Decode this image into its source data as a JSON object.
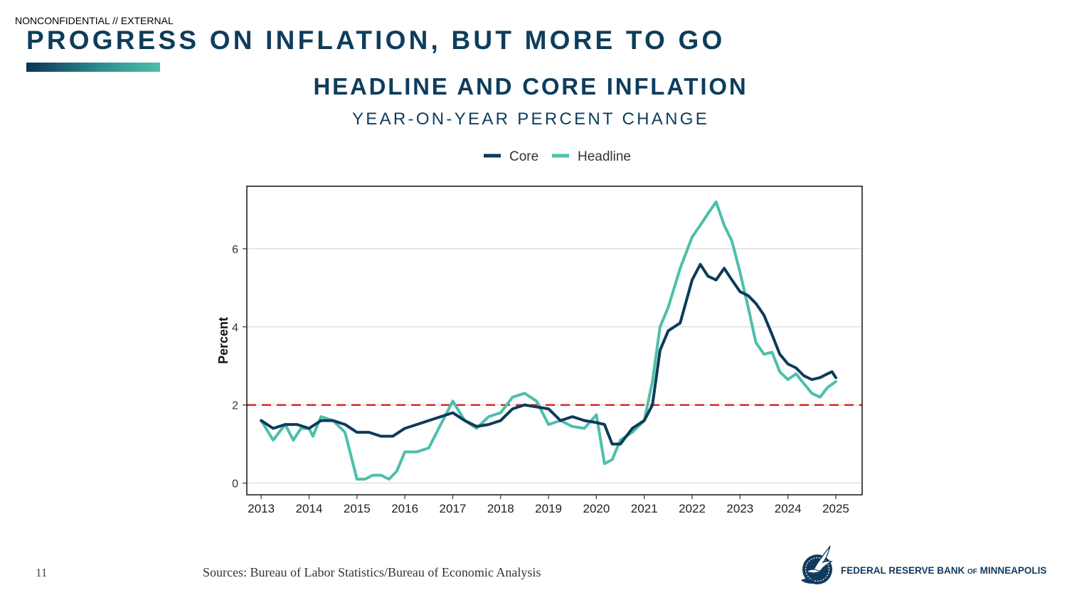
{
  "classification": "NONCONFIDENTIAL // EXTERNAL",
  "slide_title": "PROGRESS ON INFLATION, BUT MORE TO GO",
  "page_number": "11",
  "sources": "Sources: Bureau of Labor Statistics/Bureau of Economic Analysis",
  "logo": {
    "prefix": "FEDERAL RESERVE BANK ",
    "of": "OF",
    "suffix": " MINNEAPOLIS"
  },
  "colors": {
    "core": "#0d3b5a",
    "headline": "#4dbfaa",
    "target": "#e0302b",
    "title": "#0e3d5c"
  },
  "chart_data": {
    "type": "line",
    "title": "HEADLINE AND CORE INFLATION",
    "subtitle": "YEAR-ON-YEAR PERCENT CHANGE",
    "xlabel": "",
    "ylabel": "Percent",
    "xlim": [
      2012.7,
      2025.55
    ],
    "ylim": [
      -0.3,
      7.6
    ],
    "xticks": [
      2013,
      2014,
      2015,
      2016,
      2017,
      2018,
      2019,
      2020,
      2021,
      2022,
      2023,
      2024,
      2025
    ],
    "yticks": [
      0,
      2,
      4,
      6
    ],
    "grid": "horizontal",
    "legend_position": "top",
    "reference_line": {
      "y": 2,
      "style": "dashed"
    },
    "series": [
      {
        "name": "Core",
        "x": [
          2013.0,
          2013.25,
          2013.5,
          2013.75,
          2014.0,
          2014.25,
          2014.5,
          2014.75,
          2015.0,
          2015.25,
          2015.5,
          2015.75,
          2016.0,
          2016.25,
          2016.5,
          2016.75,
          2017.0,
          2017.25,
          2017.5,
          2017.75,
          2018.0,
          2018.25,
          2018.5,
          2018.75,
          2019.0,
          2019.25,
          2019.5,
          2019.75,
          2020.0,
          2020.17,
          2020.33,
          2020.5,
          2020.75,
          2021.0,
          2021.17,
          2021.33,
          2021.5,
          2021.75,
          2022.0,
          2022.17,
          2022.33,
          2022.5,
          2022.67,
          2022.83,
          2023.0,
          2023.17,
          2023.33,
          2023.5,
          2023.67,
          2023.83,
          2024.0,
          2024.17,
          2024.33,
          2024.5,
          2024.67,
          2024.83,
          2024.92,
          2025.0
        ],
        "y": [
          1.6,
          1.4,
          1.5,
          1.5,
          1.4,
          1.6,
          1.6,
          1.5,
          1.3,
          1.3,
          1.2,
          1.2,
          1.4,
          1.5,
          1.6,
          1.7,
          1.8,
          1.6,
          1.45,
          1.5,
          1.6,
          1.9,
          2.0,
          1.95,
          1.9,
          1.6,
          1.7,
          1.6,
          1.55,
          1.5,
          1.0,
          1.0,
          1.4,
          1.6,
          2.0,
          3.4,
          3.9,
          4.1,
          5.2,
          5.6,
          5.3,
          5.2,
          5.5,
          5.2,
          4.9,
          4.8,
          4.6,
          4.3,
          3.8,
          3.3,
          3.05,
          2.95,
          2.75,
          2.65,
          2.7,
          2.8,
          2.85,
          2.7
        ]
      },
      {
        "name": "Headline",
        "x": [
          2013.0,
          2013.25,
          2013.5,
          2013.67,
          2013.83,
          2014.0,
          2014.08,
          2014.25,
          2014.5,
          2014.75,
          2015.0,
          2015.17,
          2015.33,
          2015.5,
          2015.67,
          2015.83,
          2016.0,
          2016.25,
          2016.5,
          2016.75,
          2017.0,
          2017.25,
          2017.5,
          2017.75,
          2018.0,
          2018.25,
          2018.5,
          2018.75,
          2019.0,
          2019.25,
          2019.5,
          2019.75,
          2020.0,
          2020.17,
          2020.33,
          2020.5,
          2020.75,
          2021.0,
          2021.17,
          2021.33,
          2021.5,
          2021.75,
          2022.0,
          2022.17,
          2022.33,
          2022.5,
          2022.67,
          2022.83,
          2023.0,
          2023.17,
          2023.33,
          2023.5,
          2023.67,
          2023.83,
          2024.0,
          2024.17,
          2024.33,
          2024.5,
          2024.67,
          2024.83,
          2025.0
        ],
        "y": [
          1.6,
          1.1,
          1.5,
          1.1,
          1.4,
          1.4,
          1.2,
          1.7,
          1.6,
          1.3,
          0.1,
          0.1,
          0.2,
          0.2,
          0.1,
          0.3,
          0.8,
          0.8,
          0.9,
          1.5,
          2.1,
          1.6,
          1.4,
          1.7,
          1.8,
          2.2,
          2.3,
          2.1,
          1.5,
          1.6,
          1.45,
          1.4,
          1.75,
          0.5,
          0.6,
          1.1,
          1.3,
          1.6,
          2.6,
          4.0,
          4.5,
          5.5,
          6.3,
          6.6,
          6.9,
          7.2,
          6.6,
          6.2,
          5.4,
          4.5,
          3.6,
          3.3,
          3.35,
          2.85,
          2.65,
          2.8,
          2.55,
          2.3,
          2.2,
          2.45,
          2.6
        ]
      }
    ]
  }
}
